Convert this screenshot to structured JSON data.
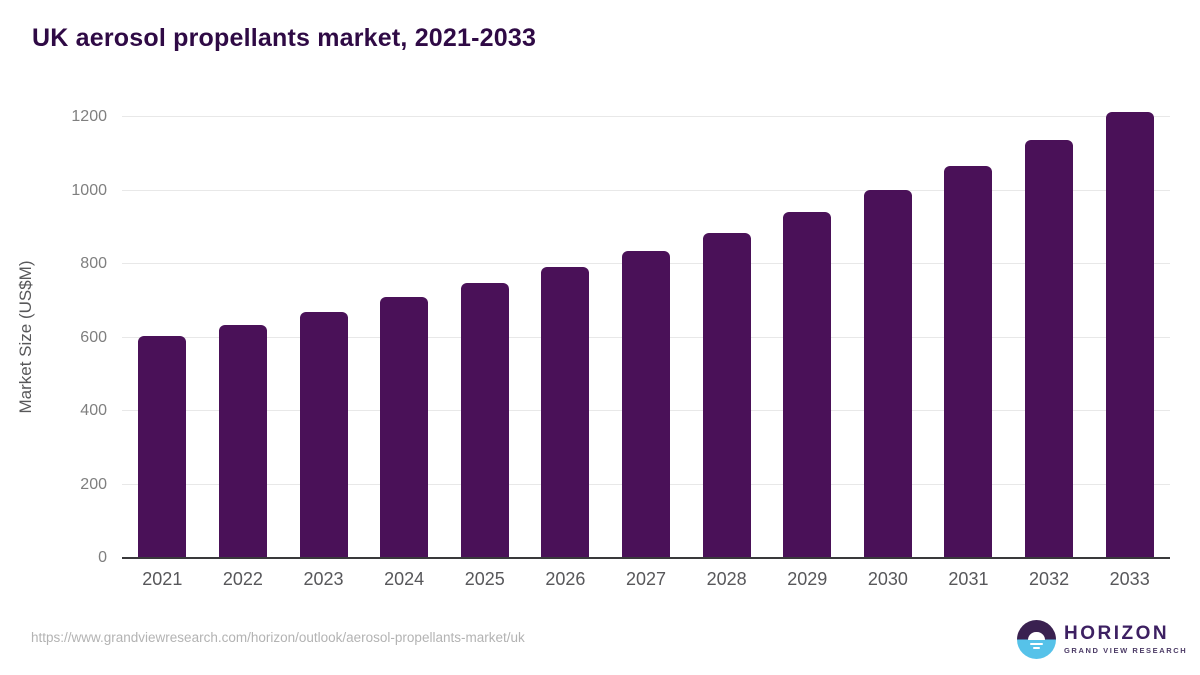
{
  "header": {
    "title": "UK aerosol propellants market, 2021-2033"
  },
  "chart_data": {
    "type": "bar",
    "title": "UK aerosol propellants market, 2021-2033",
    "categories": [
      "2021",
      "2022",
      "2023",
      "2024",
      "2025",
      "2026",
      "2027",
      "2028",
      "2029",
      "2030",
      "2031",
      "2032",
      "2033"
    ],
    "values": [
      603,
      635,
      670,
      711,
      748,
      791,
      836,
      884,
      942,
      1002,
      1068,
      1138,
      1214
    ],
    "xlabel": "",
    "ylabel": "Market Size (US$M)",
    "ylim": [
      0,
      1200
    ],
    "yticks": [
      0,
      200,
      400,
      600,
      800,
      1000,
      1200
    ],
    "grid": true,
    "legend": "none",
    "bar_color": "#4a1158"
  },
  "footer": {
    "source_url": "https://www.grandviewresearch.com/horizon/outlook/aerosol-propellants-market/uk",
    "brand": {
      "name": "HORIZON",
      "tagline": "GRAND VIEW RESEARCH"
    }
  },
  "colors": {
    "bar": "#4a1158",
    "title_text": "#2f0a45",
    "axis_label_text": "#58585a",
    "tick_text": "#7f7f7f",
    "gridline": "#e8e8e8",
    "baseline": "#39393b",
    "url_text": "#b3b3b3",
    "logo_purple": "#3a2150",
    "logo_blue": "#56c2e9"
  }
}
